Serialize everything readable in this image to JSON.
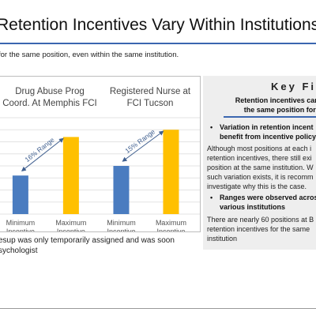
{
  "slide": {
    "title": "Retention Incentives Vary Within Institutions",
    "subtitle": "for the same position, even within the same institution."
  },
  "chart_data": [
    {
      "type": "bar",
      "title": [
        "Drug Abuse Prog",
        "Coord. At Memphis FCI"
      ],
      "categories": [
        "Minimum Incentive",
        "Maximum Incentive"
      ],
      "category_lines": [
        [
          "Minimum",
          "Incentive"
        ],
        [
          "Maximum",
          "Incentive"
        ]
      ],
      "values": [
        16,
        32
      ],
      "colors": [
        "#4a7cc0",
        "#ffc000"
      ],
      "annotation": "16% Range",
      "ylim": [
        0,
        40
      ],
      "grid": true
    },
    {
      "type": "bar",
      "title": [
        "Registered Nurse at",
        "FCI Tucson"
      ],
      "categories": [
        "Minimum Incentive",
        "Maximum Incentive"
      ],
      "category_lines": [
        [
          "Minimum",
          "Incentive"
        ],
        [
          "Maximum",
          "Incentive"
        ]
      ],
      "values": [
        20,
        35
      ],
      "colors": [
        "#4a7cc0",
        "#ffc000"
      ],
      "annotation": "15% Range",
      "ylim": [
        0,
        40
      ],
      "grid": true
    }
  ],
  "footnote": {
    "lines": [
      "esup was only temporarily assigned and was soon",
      "sychologist"
    ]
  },
  "findings": {
    "heading": "Key Fin",
    "lead_lines": [
      "Retention incentives can va",
      "the same position for t"
    ],
    "bullet1": {
      "marker": "•",
      "title_lines": [
        "Variation in retention incent",
        "benefit from incentive policy"
      ],
      "body_lines": [
        "Although most positions at each i",
        "retention incentives, there still exi",
        "position at the same institution. W",
        "such variation exists, it is recomm",
        "investigate why this is the case."
      ]
    },
    "bullet2": {
      "marker": "•",
      "title_lines": [
        "Ranges were observed acros",
        "various institutions"
      ],
      "body_lines": [
        "There are nearly 60 positions at B",
        "retention incentives for the same",
        "institution"
      ]
    }
  }
}
